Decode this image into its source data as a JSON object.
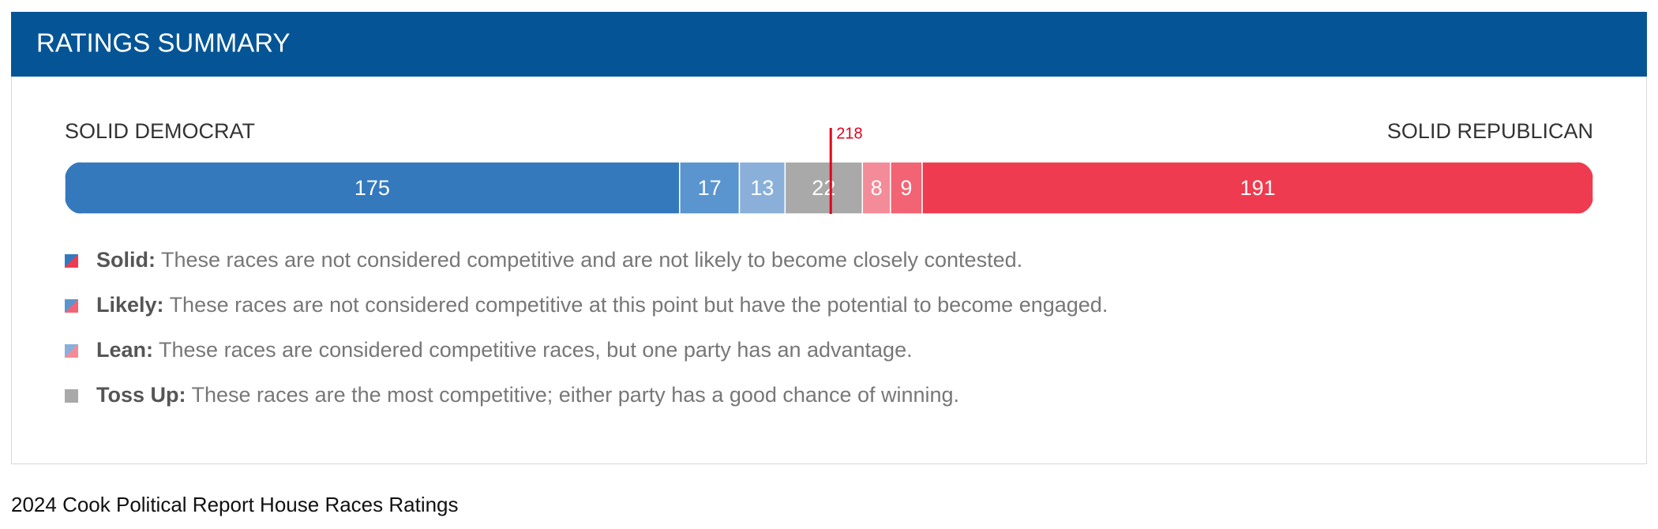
{
  "header": {
    "title": "RATINGS SUMMARY"
  },
  "chart_data": {
    "type": "stacked-bar",
    "left_label": "SOLID DEMOCRAT",
    "right_label": "SOLID REPUBLICAN",
    "values": [
      175,
      17,
      13,
      22,
      8,
      9,
      191
    ],
    "colors": [
      "#3579bd",
      "#5b95cf",
      "#8ab0da",
      "#a9a9a9",
      "#f48b98",
      "#f26473",
      "#ef3b4f"
    ],
    "xlim": [
      0,
      435
    ],
    "marker": 218
  },
  "legend": [
    {
      "label": "Solid:",
      "text": "These races are not considered competitive and are not likely to become closely contested."
    },
    {
      "label": "Likely:",
      "text": "These races are not considered competitive at this point but have the potential to become engaged."
    },
    {
      "label": "Lean:",
      "text": "These races are considered competitive races, but one party has an advantage."
    },
    {
      "label": "Toss Up:",
      "text": "These races are the most competitive; either party has a good chance of winning."
    }
  ],
  "caption": "2024 Cook Political Report House Races Ratings"
}
